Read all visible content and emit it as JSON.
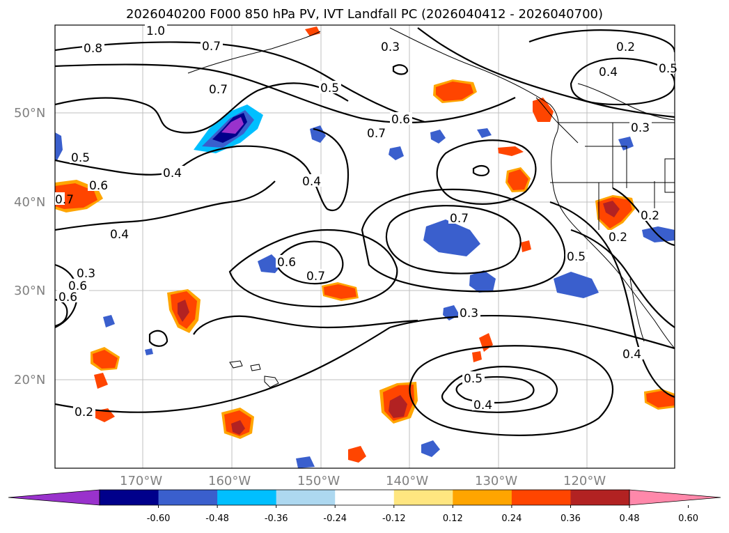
{
  "title": "2026040200 F000 850 hPa PV, IVT Landfall PC (2026040412 - 2026040700)",
  "lat_labels": [
    "50°N",
    "40°N",
    "30°N",
    "20°N"
  ],
  "lon_labels": [
    "170°W",
    "160°W",
    "150°W",
    "140°W",
    "130°W",
    "120°W"
  ],
  "contour_labels": [
    "1.0",
    "0.8",
    "0.7",
    "0.7",
    "0.5",
    "0.3",
    "0.6",
    "0.7",
    "0.2",
    "0.4",
    "0.5",
    "0.6",
    "0.4",
    "0.4",
    "0.7",
    "0.4",
    "0.7",
    "0.6",
    "0.5",
    "0.3",
    "0.3",
    "0.2",
    "0.2",
    "0.3",
    "0.5",
    "0.4",
    "0.2",
    "0.4",
    "0.6",
    "0.6",
    "0.5",
    "0.7"
  ],
  "colorbar": {
    "ticks": [
      "-0.60",
      "-0.48",
      "-0.36",
      "-0.24",
      "-0.12",
      "0.12",
      "0.24",
      "0.36",
      "0.48",
      "0.60"
    ],
    "colors": [
      "#9932cc",
      "#00008b",
      "#3a5fcd",
      "#00bfff",
      "#add8f0",
      "#ffffff",
      "#ffe680",
      "#ffa500",
      "#ff4500",
      "#b22222",
      "#ff88aa"
    ]
  }
}
